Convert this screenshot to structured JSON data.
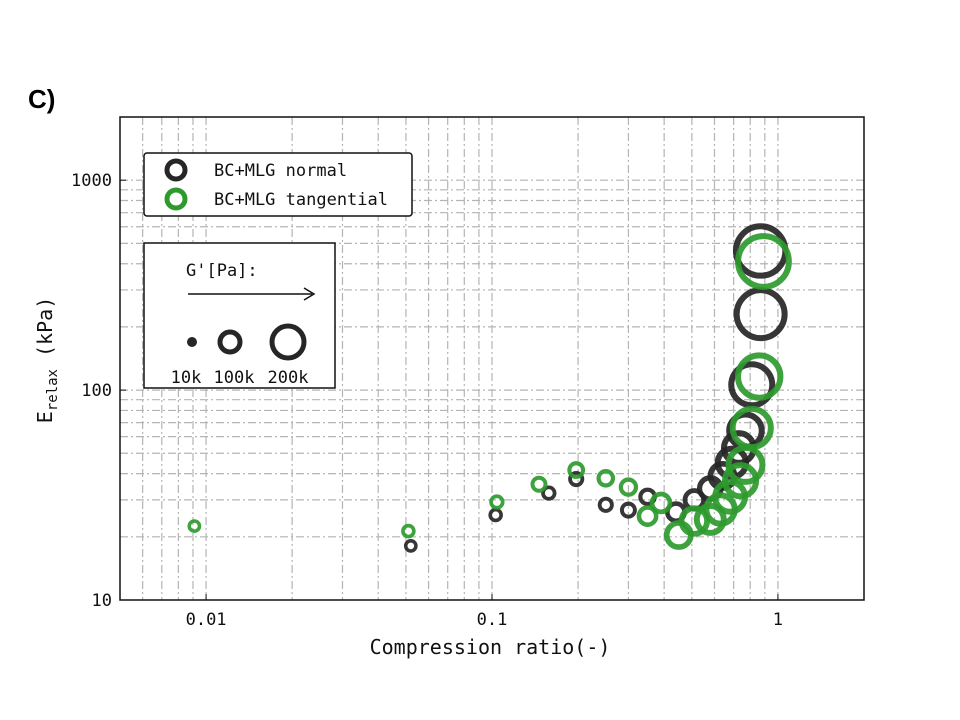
{
  "panel_label": "C)",
  "chart_data": {
    "type": "scatter",
    "title": "",
    "xlabel": "Compression ratio(-)",
    "ylabel_main": "E",
    "ylabel_sub": "relax",
    "ylabel_unit": " (kPa)",
    "xscale": "log",
    "yscale": "log",
    "xlim": [
      0.005,
      2
    ],
    "ylim": [
      10,
      2000
    ],
    "xticks": [
      {
        "v": 0.01,
        "label": "0.01"
      },
      {
        "v": 0.1,
        "label": "0.1"
      },
      {
        "v": 1,
        "label": "1"
      }
    ],
    "yticks": [
      {
        "v": 10,
        "label": "10"
      },
      {
        "v": 100,
        "label": "100"
      },
      {
        "v": 1000,
        "label": "1000"
      }
    ],
    "grid": true,
    "legend_placement": "top-left",
    "series": [
      {
        "name": "BC+MLG normal",
        "color": "#262626",
        "points": [
          {
            "x": 0.052,
            "y": 18.1,
            "g_kpa": 30
          },
          {
            "x": 0.103,
            "y": 25.4,
            "g_kpa": 35
          },
          {
            "x": 0.158,
            "y": 32.3,
            "g_kpa": 40
          },
          {
            "x": 0.197,
            "y": 37.7,
            "g_kpa": 45
          },
          {
            "x": 0.25,
            "y": 28.4,
            "g_kpa": 45
          },
          {
            "x": 0.3,
            "y": 26.8,
            "g_kpa": 50
          },
          {
            "x": 0.35,
            "y": 31,
            "g_kpa": 60
          },
          {
            "x": 0.44,
            "y": 26.2,
            "g_kpa": 80
          },
          {
            "x": 0.51,
            "y": 30,
            "g_kpa": 90
          },
          {
            "x": 0.58,
            "y": 34,
            "g_kpa": 110
          },
          {
            "x": 0.64,
            "y": 39,
            "g_kpa": 130
          },
          {
            "x": 0.69,
            "y": 45,
            "g_kpa": 160
          },
          {
            "x": 0.73,
            "y": 53,
            "g_kpa": 170
          },
          {
            "x": 0.77,
            "y": 64,
            "g_kpa": 190
          },
          {
            "x": 0.81,
            "y": 106,
            "g_kpa": 250
          },
          {
            "x": 0.87,
            "y": 230,
            "g_kpa": 300
          },
          {
            "x": 0.87,
            "y": 460,
            "g_kpa": 310
          }
        ]
      },
      {
        "name": "BC+MLG tangential",
        "color": "#2e9a2e",
        "points": [
          {
            "x": 0.0091,
            "y": 22.5,
            "g_kpa": 30
          },
          {
            "x": 0.051,
            "y": 21.3,
            "g_kpa": 35
          },
          {
            "x": 0.104,
            "y": 29.3,
            "g_kpa": 40
          },
          {
            "x": 0.146,
            "y": 35.6,
            "g_kpa": 50
          },
          {
            "x": 0.197,
            "y": 41.6,
            "g_kpa": 55
          },
          {
            "x": 0.25,
            "y": 38,
            "g_kpa": 60
          },
          {
            "x": 0.3,
            "y": 34.5,
            "g_kpa": 65
          },
          {
            "x": 0.35,
            "y": 25.1,
            "g_kpa": 80
          },
          {
            "x": 0.39,
            "y": 29,
            "g_kpa": 85
          },
          {
            "x": 0.45,
            "y": 20.4,
            "g_kpa": 130
          },
          {
            "x": 0.51,
            "y": 23.8,
            "g_kpa": 140
          },
          {
            "x": 0.58,
            "y": 24.2,
            "g_kpa": 150
          },
          {
            "x": 0.63,
            "y": 27,
            "g_kpa": 160
          },
          {
            "x": 0.68,
            "y": 31,
            "g_kpa": 170
          },
          {
            "x": 0.74,
            "y": 37,
            "g_kpa": 180
          },
          {
            "x": 0.77,
            "y": 44,
            "g_kpa": 200
          },
          {
            "x": 0.81,
            "y": 66,
            "g_kpa": 230
          },
          {
            "x": 0.86,
            "y": 116,
            "g_kpa": 260
          },
          {
            "x": 0.89,
            "y": 410,
            "g_kpa": 320
          }
        ]
      }
    ],
    "size_legend": {
      "title": "G'[Pa]:",
      "items": [
        {
          "label": "10k",
          "g_kpa": 10
        },
        {
          "label": "100k",
          "g_kpa": 100
        },
        {
          "label": "200k",
          "g_kpa": 200
        }
      ]
    }
  }
}
